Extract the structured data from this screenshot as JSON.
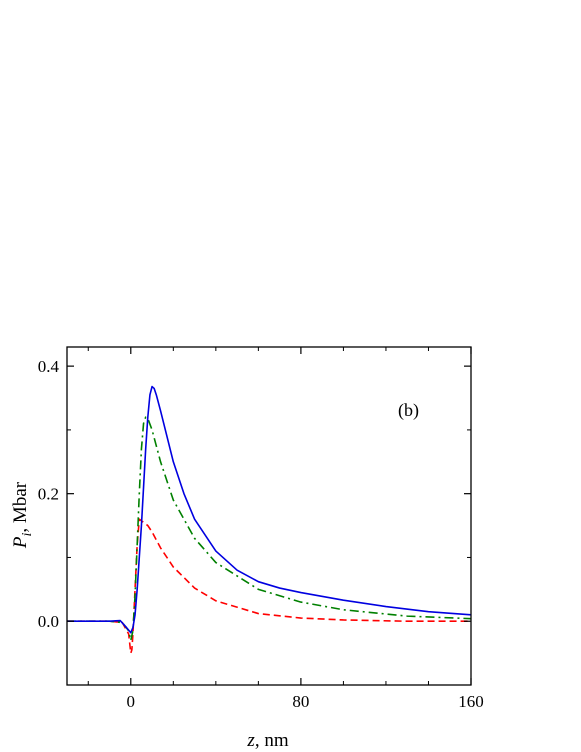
{
  "chart_data": {
    "type": "line",
    "annotation": "(b)",
    "xlabel": {
      "var": "z",
      "unit": ", nm"
    },
    "ylabel": {
      "var": "P",
      "sub": "i",
      "unit": ", Mbar"
    },
    "xlim": [
      -30,
      160
    ],
    "ylim": [
      -0.1,
      0.43
    ],
    "xticks": [
      0,
      80,
      160
    ],
    "xtick_labels": [
      "0",
      "80",
      "160"
    ],
    "yticks": [
      0.0,
      0.2,
      0.4
    ],
    "ytick_labels": [
      "0.0",
      "0.2",
      "0.4"
    ],
    "grid": false,
    "series": [
      {
        "color": "#ff0000",
        "dash": "7,4",
        "x": [
          -30,
          -10,
          -4,
          -1,
          0,
          0.5,
          1,
          2,
          3,
          4,
          6,
          8,
          10,
          14,
          20,
          30,
          40,
          60,
          80,
          100,
          130,
          160
        ],
        "y": [
          0.0,
          0.0,
          -0.002,
          -0.02,
          -0.05,
          -0.045,
          -0.02,
          0.05,
          0.12,
          0.16,
          0.155,
          0.15,
          0.14,
          0.115,
          0.085,
          0.052,
          0.032,
          0.012,
          0.005,
          0.002,
          0.0,
          0.0
        ]
      },
      {
        "color": "#008000",
        "dash": "9,4,2,4",
        "x": [
          -30,
          -10,
          -4,
          -1,
          0,
          1,
          2,
          3,
          4,
          5,
          6,
          7,
          8,
          10,
          14,
          20,
          30,
          40,
          60,
          80,
          100,
          130,
          160
        ],
        "y": [
          0.0,
          0.0,
          -0.002,
          -0.015,
          -0.03,
          -0.015,
          0.04,
          0.12,
          0.2,
          0.27,
          0.31,
          0.32,
          0.318,
          0.3,
          0.25,
          0.19,
          0.13,
          0.092,
          0.05,
          0.03,
          0.018,
          0.008,
          0.004
        ]
      },
      {
        "color": "#0000e0",
        "dash": "",
        "x": [
          -30,
          -10,
          -5,
          -2,
          0,
          1,
          2,
          3,
          4,
          5,
          6,
          7,
          8,
          9,
          10,
          11,
          12,
          14,
          17,
          20,
          25,
          30,
          40,
          50,
          60,
          70,
          80,
          100,
          120,
          140,
          160
        ],
        "y": [
          0.0,
          0.0,
          0.001,
          -0.01,
          -0.018,
          -0.01,
          0.01,
          0.05,
          0.1,
          0.15,
          0.21,
          0.27,
          0.32,
          0.355,
          0.368,
          0.365,
          0.355,
          0.33,
          0.29,
          0.25,
          0.2,
          0.16,
          0.11,
          0.08,
          0.062,
          0.052,
          0.045,
          0.033,
          0.023,
          0.015,
          0.01
        ]
      }
    ]
  }
}
